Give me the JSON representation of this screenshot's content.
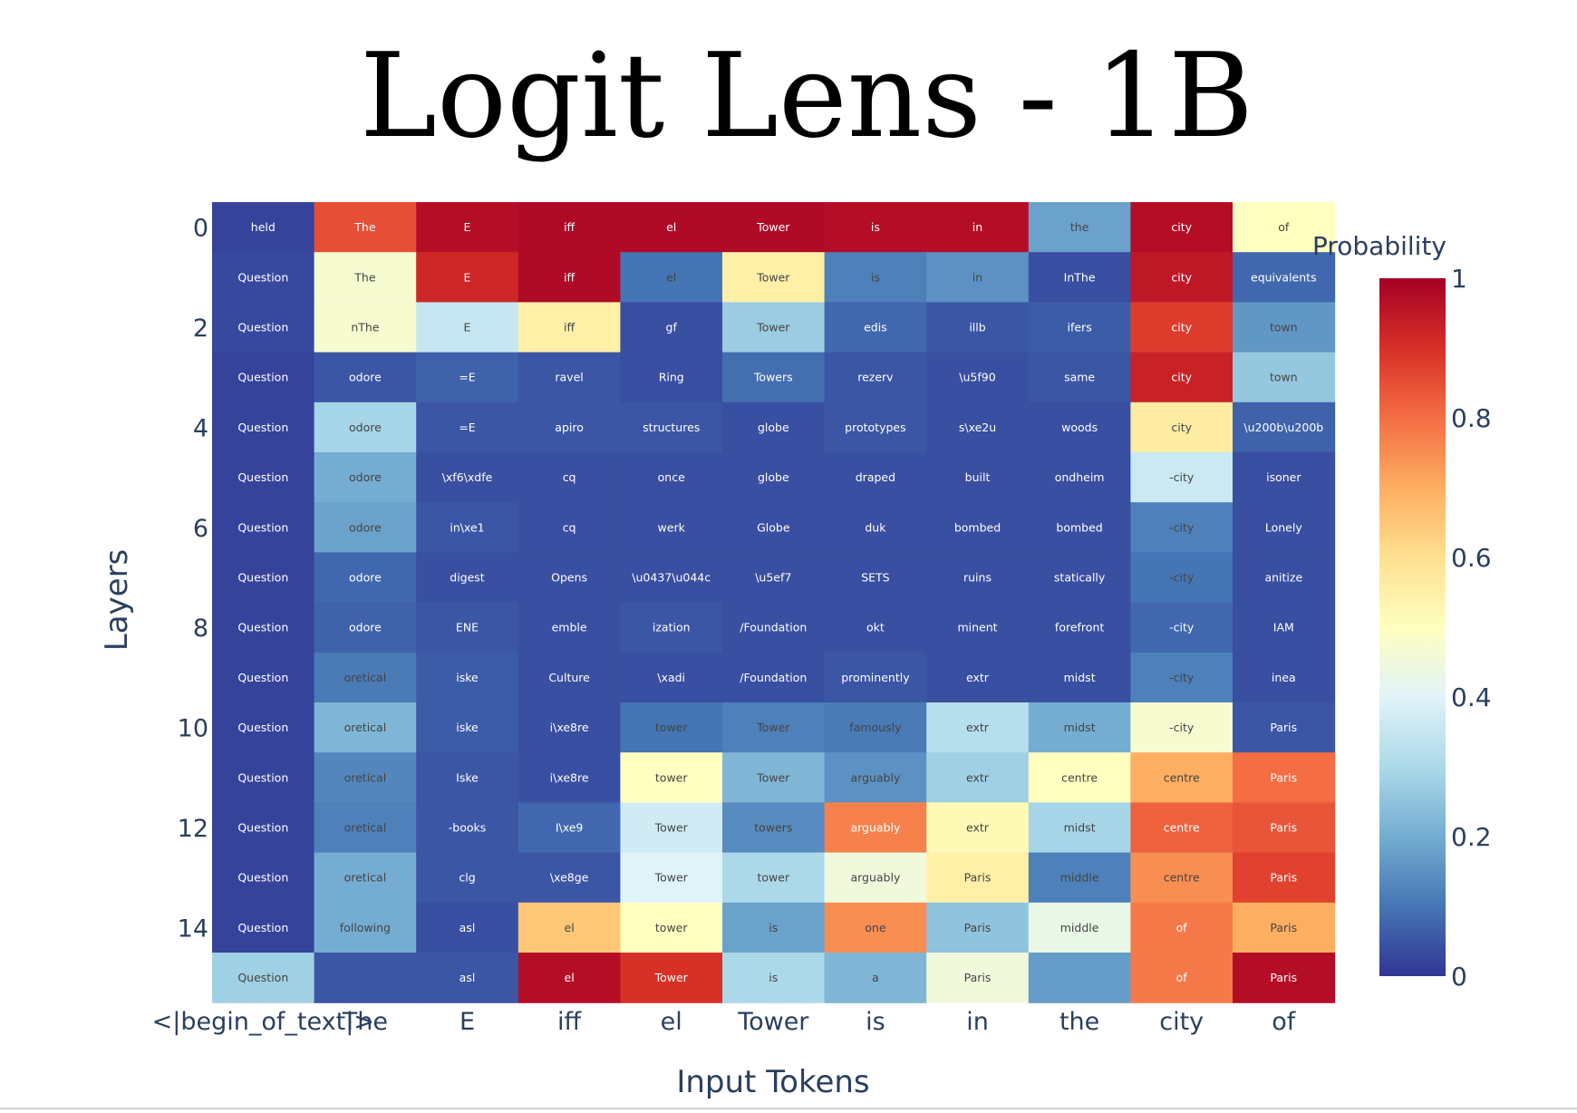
{
  "chart_data": {
    "type": "heatmap",
    "title": "Logit Lens - 1B",
    "xlabel": "Input Tokens",
    "ylabel": "Layers",
    "colorbar_title": "Probability",
    "colorbar_range": [
      0,
      1
    ],
    "colorbar_ticks": [
      "0",
      "0.2",
      "0.4",
      "0.6",
      "0.8",
      "1"
    ],
    "colorscale": "RdYlBu_r",
    "x_tick_labels": [
      "<|begin_of_text|>",
      "The",
      "E",
      "iff",
      "el",
      "Tower",
      "is",
      "in",
      "the",
      "city",
      "of"
    ],
    "y_tick_labels": [
      "0",
      "2",
      "4",
      "6",
      "8",
      "10",
      "12",
      "14"
    ],
    "y_tick_rows": [
      0,
      2,
      4,
      6,
      8,
      10,
      12,
      14
    ],
    "layers": [
      0,
      1,
      2,
      3,
      4,
      5,
      6,
      7,
      8,
      9,
      10,
      11,
      12,
      13,
      14,
      15
    ],
    "text": [
      [
        "held",
        "The",
        "E",
        "iff",
        "el",
        "Tower",
        "is",
        "in",
        "the",
        "city",
        "of"
      ],
      [
        "Question",
        "The",
        "E",
        "iff",
        "el",
        "Tower",
        "is",
        "in",
        "InThe",
        "city",
        "equivalents"
      ],
      [
        "Question",
        "nThe",
        "E",
        "iff",
        "gf",
        "Tower",
        "edis",
        "illb",
        "ifers",
        "city",
        "town"
      ],
      [
        "Question",
        "odore",
        "=E",
        "ravel",
        "Ring",
        "Towers",
        "rezerv",
        "\\u5f90",
        "same",
        "city",
        "town"
      ],
      [
        "Question",
        "odore",
        "=E",
        "apiro",
        "structures",
        "globe",
        "prototypes",
        "s\\xe2u",
        "woods",
        "city",
        "\\u200b\\u200b"
      ],
      [
        "Question",
        "odore",
        "\\xf6\\xdfe",
        "cq",
        "once",
        "globe",
        "draped",
        "built",
        "ondheim",
        "-city",
        "isoner"
      ],
      [
        "Question",
        "odore",
        "in\\xe1",
        "cq",
        "werk",
        "Globe",
        "duk",
        "bombed",
        "bombed",
        "-city",
        "Lonely"
      ],
      [
        "Question",
        "odore",
        "digest",
        "Opens",
        "\\u0437\\u044c",
        "\\u5ef7",
        "SETS",
        "ruins",
        "statically",
        "-city",
        "anitize"
      ],
      [
        "Question",
        "odore",
        "ENE",
        "emble",
        "ization",
        "/Foundation",
        "okt",
        "minent",
        "forefront",
        "-city",
        "IAM"
      ],
      [
        "Question",
        "oretical",
        "iske",
        "Culture",
        "\\xadi",
        "/Foundation",
        "prominently",
        "extr",
        "midst",
        "-city",
        "inea"
      ],
      [
        "Question",
        "oretical",
        "iske",
        "i\\xe8re",
        "tower",
        "Tower",
        "famously",
        "extr",
        "midst",
        "-city",
        "Paris"
      ],
      [
        "Question",
        "oretical",
        "Iske",
        "i\\xe8re",
        "tower",
        "Tower",
        "arguably",
        "extr",
        "centre",
        "centre",
        "Paris"
      ],
      [
        "Question",
        "oretical",
        "-books",
        "I\\xe9",
        "Tower",
        "towers",
        "arguably",
        "extr",
        "midst",
        "centre",
        "Paris"
      ],
      [
        "Question",
        "oretical",
        "clg",
        "\\xe8ge",
        "Tower",
        "tower",
        "arguably",
        "Paris",
        "middle",
        "centre",
        "Paris"
      ],
      [
        "Question",
        "following",
        "asl",
        "el",
        "tower",
        "is",
        "one",
        "Paris",
        "middle",
        "of",
        "Paris"
      ],
      [
        "Question",
        "",
        "asl",
        "el",
        "Tower",
        "is",
        "a",
        "Paris",
        "",
        "of",
        "Paris"
      ]
    ],
    "z": [
      [
        0.02,
        0.85,
        0.97,
        0.98,
        0.98,
        0.98,
        0.97,
        0.97,
        0.18,
        0.97,
        0.5
      ],
      [
        0.03,
        0.47,
        0.92,
        0.98,
        0.1,
        0.55,
        0.12,
        0.15,
        0.04,
        0.95,
        0.08
      ],
      [
        0.03,
        0.47,
        0.35,
        0.55,
        0.04,
        0.27,
        0.08,
        0.05,
        0.06,
        0.88,
        0.16
      ],
      [
        0.02,
        0.05,
        0.07,
        0.05,
        0.04,
        0.09,
        0.05,
        0.04,
        0.05,
        0.93,
        0.26
      ],
      [
        0.02,
        0.29,
        0.05,
        0.05,
        0.05,
        0.04,
        0.05,
        0.04,
        0.04,
        0.56,
        0.07
      ],
      [
        0.02,
        0.2,
        0.04,
        0.04,
        0.04,
        0.04,
        0.04,
        0.04,
        0.04,
        0.36,
        0.04
      ],
      [
        0.02,
        0.18,
        0.05,
        0.04,
        0.04,
        0.04,
        0.04,
        0.04,
        0.04,
        0.12,
        0.04
      ],
      [
        0.02,
        0.08,
        0.04,
        0.04,
        0.04,
        0.04,
        0.04,
        0.04,
        0.04,
        0.1,
        0.04
      ],
      [
        0.02,
        0.07,
        0.05,
        0.04,
        0.05,
        0.04,
        0.04,
        0.04,
        0.04,
        0.08,
        0.04
      ],
      [
        0.02,
        0.11,
        0.06,
        0.04,
        0.04,
        0.04,
        0.05,
        0.04,
        0.04,
        0.12,
        0.04
      ],
      [
        0.02,
        0.22,
        0.06,
        0.04,
        0.1,
        0.12,
        0.11,
        0.32,
        0.2,
        0.47,
        0.05
      ],
      [
        0.02,
        0.13,
        0.05,
        0.04,
        0.5,
        0.22,
        0.15,
        0.28,
        0.5,
        0.7,
        0.8
      ],
      [
        0.02,
        0.12,
        0.05,
        0.08,
        0.37,
        0.14,
        0.77,
        0.52,
        0.29,
        0.82,
        0.84
      ],
      [
        0.02,
        0.2,
        0.05,
        0.05,
        0.4,
        0.3,
        0.45,
        0.55,
        0.12,
        0.75,
        0.87
      ],
      [
        0.02,
        0.2,
        0.04,
        0.65,
        0.5,
        0.18,
        0.75,
        0.25,
        0.43,
        0.78,
        0.7
      ],
      [
        0.28,
        0.05,
        0.05,
        0.97,
        0.9,
        0.3,
        0.22,
        0.45,
        0.17,
        0.78,
        0.97
      ]
    ]
  }
}
